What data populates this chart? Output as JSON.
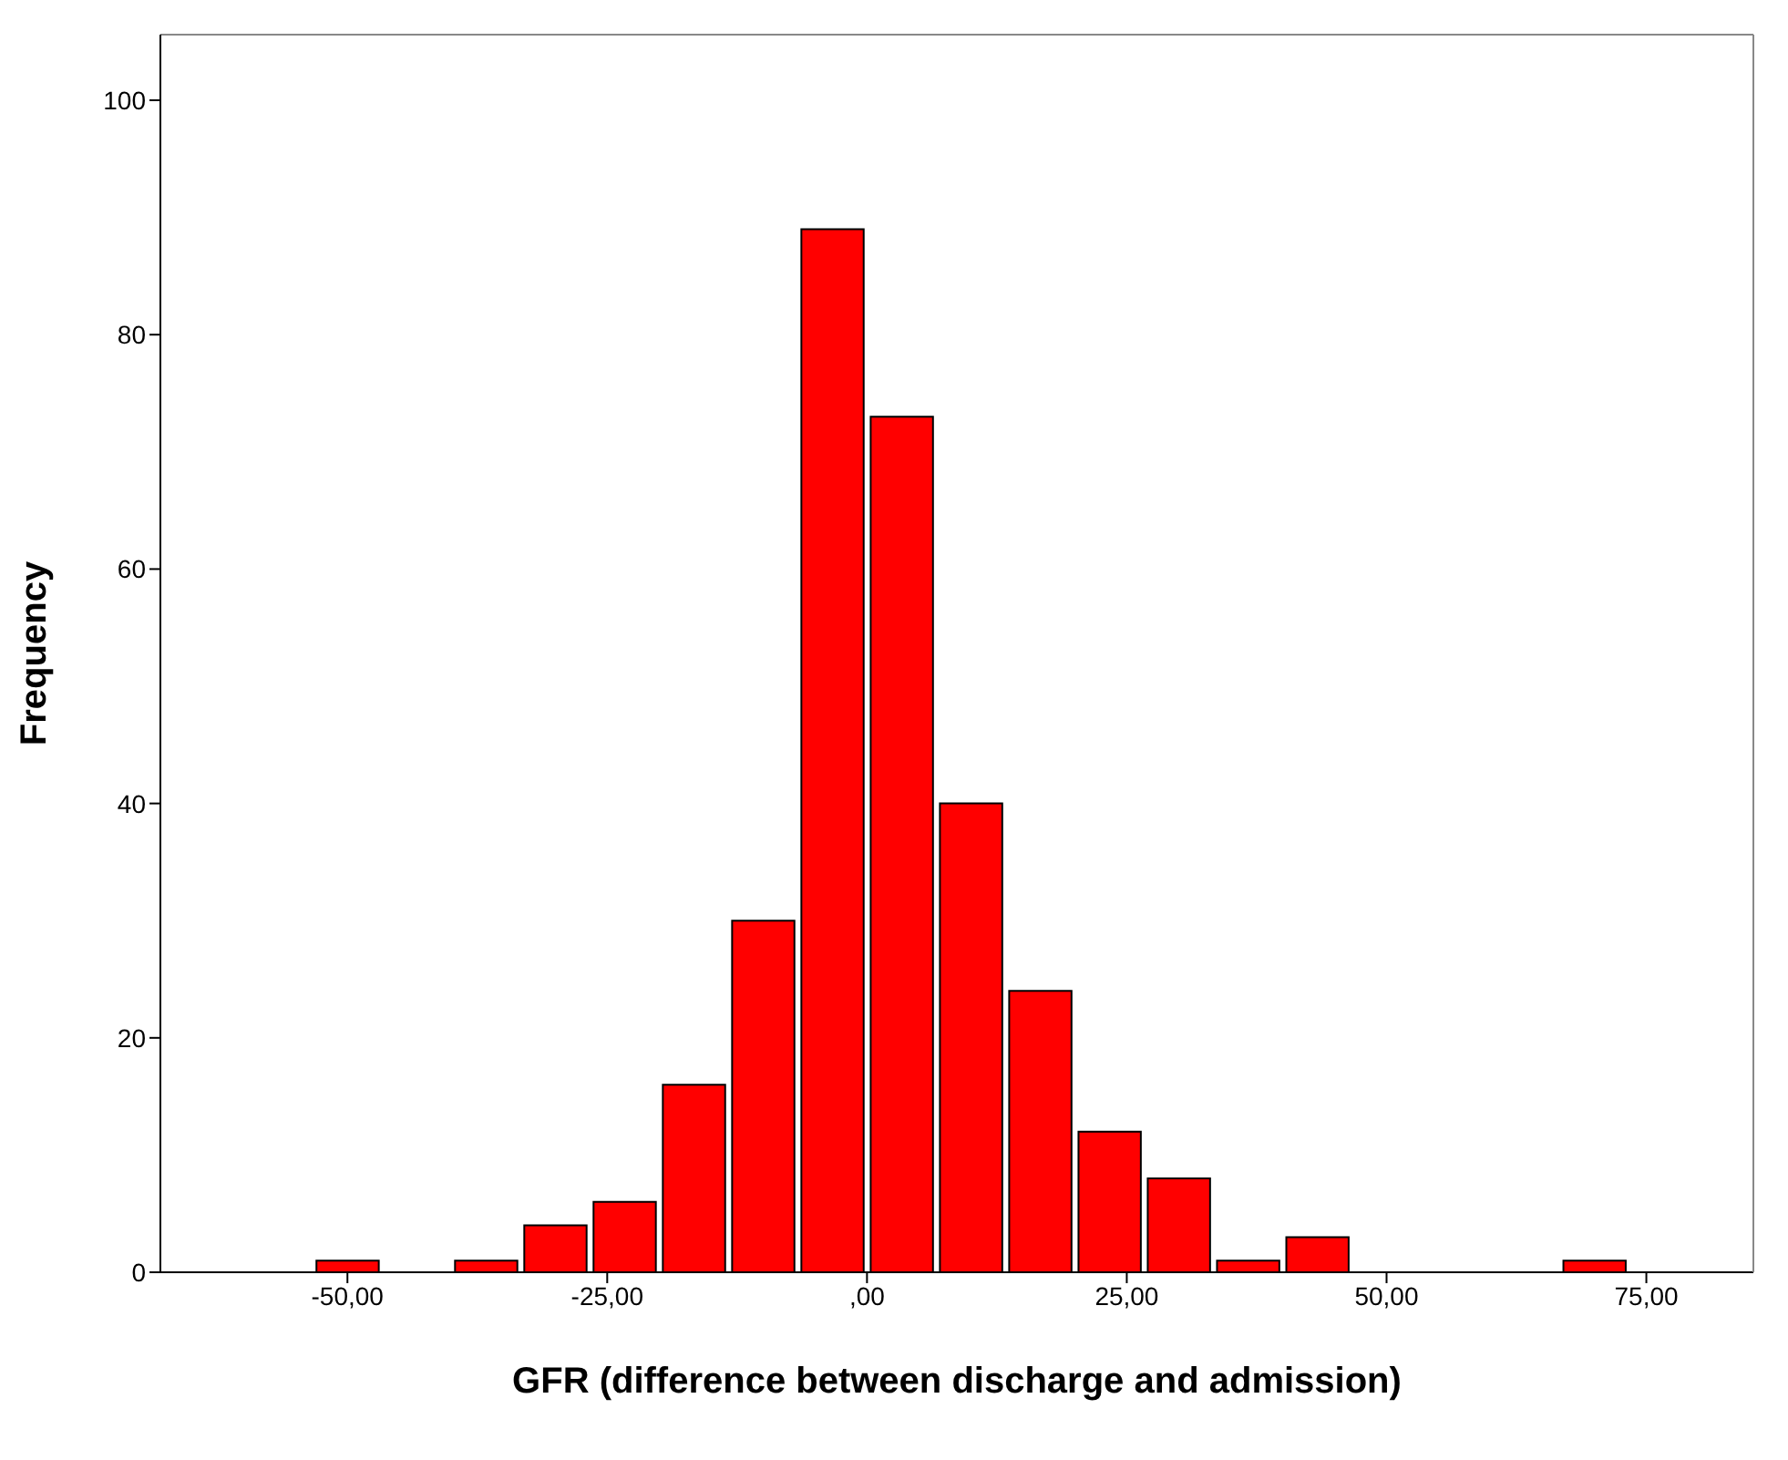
{
  "chart_data": {
    "type": "histogram",
    "xlabel": "GFR (difference between discharge and admission)",
    "ylabel": "Frequency",
    "bins": [
      -53.33,
      -46.67,
      -40,
      -33.33,
      -26.67,
      -20,
      -13.33,
      -6.67,
      0,
      6.67,
      13.33,
      20,
      26.67,
      33.33,
      40,
      46.67,
      53.33,
      60,
      66.67,
      73.33
    ],
    "values": [
      1,
      0,
      1,
      4,
      6,
      16,
      30,
      89,
      73,
      40,
      24,
      12,
      8,
      1,
      3,
      0,
      0,
      0,
      1
    ],
    "color": "#ff0000",
    "xlim": [
      -68,
      85.3
    ],
    "xticks": [
      {
        "value": -50,
        "label": "-50,00"
      },
      {
        "value": -25,
        "label": "-25,00"
      },
      {
        "value": 0,
        "label": ",00"
      },
      {
        "value": 25,
        "label": "25,00"
      },
      {
        "value": 50,
        "label": "50,00"
      },
      {
        "value": 75,
        "label": "75,00"
      }
    ],
    "ylim": [
      0,
      105.6
    ],
    "yticks": [
      0,
      20,
      40,
      60,
      80,
      100
    ],
    "grid": false
  }
}
